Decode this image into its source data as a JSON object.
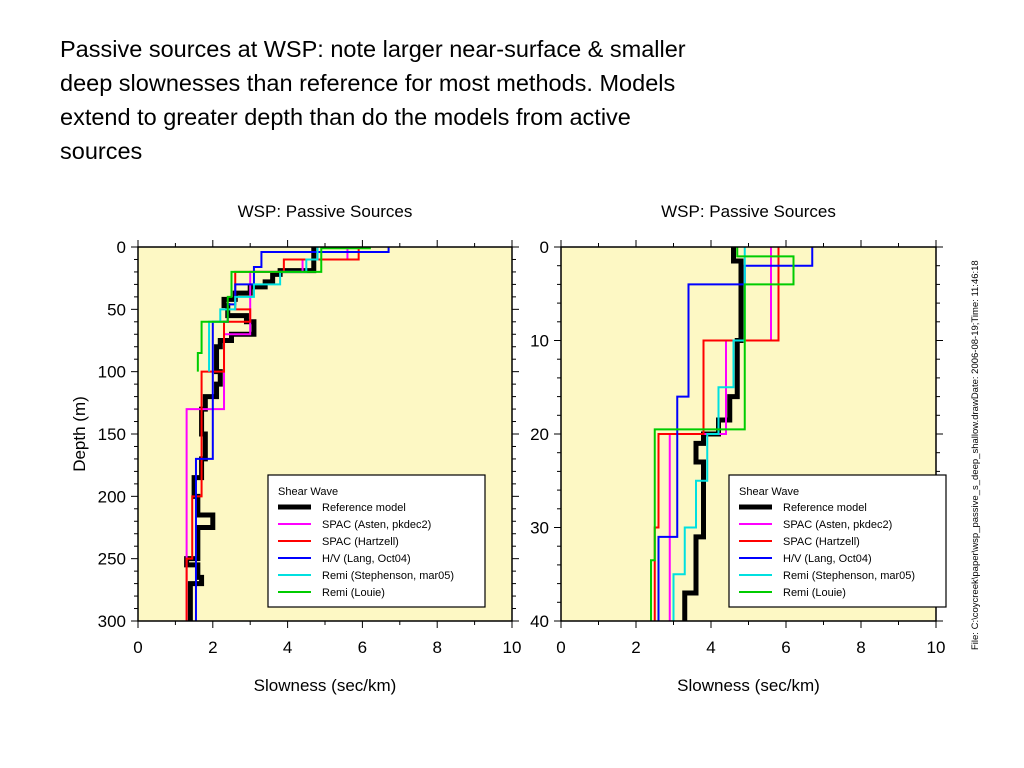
{
  "slide_title": [
    "Passive sources at WSP:  note larger near-surface & smaller",
    "deep slownesses than reference for most methods.  Models",
    "extend to greater depth than do the models from active",
    "sources"
  ],
  "file_info": "File: C:\\coycreek\\paper\\wsp_passive_s_deep_shallow.drawDate: 2006-08-19;Time: 11:46:18",
  "colors": {
    "plot_bg": "#fdf8c4",
    "reference": "#000000",
    "spac_asten": "#ff00ff",
    "spac_hartzell": "#ff0000",
    "hv_lang": "#0000ff",
    "remi_stephenson": "#00e0e0",
    "remi_louie": "#00cc00"
  },
  "chart_data": [
    {
      "type": "line",
      "title": "WSP: Passive Sources",
      "xlabel": "Slowness  (sec/km)",
      "ylabel": "Depth (m)",
      "xlim": [
        0,
        10
      ],
      "ylim": [
        0,
        300
      ],
      "y_inverted": true,
      "xticks": [
        "0",
        "2",
        "4",
        "6",
        "8",
        "10"
      ],
      "yticks": [
        "0",
        "50",
        "100",
        "150",
        "200",
        "250",
        "300"
      ],
      "legend": {
        "title": "Shear  Wave",
        "position": "bottom-right"
      },
      "series": [
        {
          "name": "Reference  model",
          "color": "#000000",
          "width": 5,
          "layers": [
            [
              0,
              19,
              4.7
            ],
            [
              19,
              22,
              3.8
            ],
            [
              22,
              28,
              3.6
            ],
            [
              28,
              32,
              3.4
            ],
            [
              32,
              37,
              3.0
            ],
            [
              37,
              42,
              2.6
            ],
            [
              42,
              47,
              2.3
            ],
            [
              47,
              55,
              2.4
            ],
            [
              55,
              60,
              2.9
            ],
            [
              60,
              70,
              3.1
            ],
            [
              70,
              75,
              2.5
            ],
            [
              75,
              80,
              2.2
            ],
            [
              80,
              100,
              2.1
            ],
            [
              100,
              110,
              2.2
            ],
            [
              110,
              120,
              2.1
            ],
            [
              120,
              130,
              1.8
            ],
            [
              130,
              150,
              1.7
            ],
            [
              150,
              170,
              1.8
            ],
            [
              170,
              185,
              1.7
            ],
            [
              185,
              200,
              1.5
            ],
            [
              200,
              215,
              1.6
            ],
            [
              215,
              225,
              2.0
            ],
            [
              225,
              250,
              1.6
            ],
            [
              250,
              255,
              1.3
            ],
            [
              255,
              265,
              1.6
            ],
            [
              265,
              270,
              1.7
            ],
            [
              270,
              300,
              1.4
            ]
          ]
        },
        {
          "name": "SPAC  (Asten,  pkdec2)",
          "color": "#ff00ff",
          "width": 2,
          "layers": [
            [
              0,
              10,
              5.6
            ],
            [
              10,
              20,
              4.4
            ],
            [
              20,
              70,
              3.0
            ],
            [
              70,
              130,
              2.3
            ],
            [
              130,
              300,
              1.3
            ]
          ]
        },
        {
          "name": "SPAC  (Hartzell)",
          "color": "#ff0000",
          "width": 2,
          "layers": [
            [
              0,
              10,
              5.9
            ],
            [
              10,
              20,
              3.9
            ],
            [
              20,
              50,
              2.6
            ],
            [
              50,
              60,
              3.0
            ],
            [
              60,
              100,
              2.3
            ],
            [
              100,
              200,
              1.7
            ],
            [
              200,
              250,
              1.45
            ],
            [
              250,
              300,
              1.3
            ]
          ]
        },
        {
          "name": "H/V  (Lang,  Oct04)",
          "color": "#0000ff",
          "width": 2,
          "layers": [
            [
              0,
              4,
              6.7
            ],
            [
              4,
              16,
              3.3
            ],
            [
              16,
              30,
              3.1
            ],
            [
              30,
              46,
              2.6
            ],
            [
              46,
              60,
              2.4
            ],
            [
              60,
              170,
              2.0
            ],
            [
              170,
              300,
              1.55
            ]
          ]
        },
        {
          "name": "Remi  (Stephenson,   mar05)",
          "color": "#00e0e0",
          "width": 2,
          "layers": [
            [
              0,
              10,
              4.8
            ],
            [
              10,
              20,
              4.5
            ],
            [
              20,
              30,
              3.8
            ],
            [
              30,
              40,
              3.1
            ],
            [
              40,
              50,
              2.6
            ],
            [
              50,
              60,
              2.2
            ],
            [
              60,
              100,
              1.9
            ]
          ]
        },
        {
          "name": "Remi  (Louie)",
          "color": "#00cc00",
          "width": 2,
          "layers": [
            [
              0,
              1,
              6.2
            ],
            [
              1,
              20,
              4.9
            ],
            [
              20,
              40,
              2.5
            ],
            [
              40,
              60,
              2.4
            ],
            [
              60,
              85,
              1.7
            ],
            [
              85,
              100,
              1.6
            ]
          ]
        }
      ]
    },
    {
      "type": "line",
      "title": "WSP: Passive Sources",
      "xlabel": "Slowness  (sec/km)",
      "ylabel": "",
      "xlim": [
        0,
        10
      ],
      "ylim": [
        0,
        40
      ],
      "y_inverted": true,
      "xticks": [
        "0",
        "2",
        "4",
        "6",
        "8",
        "10"
      ],
      "yticks": [
        "0",
        "10",
        "20",
        "30",
        "40"
      ],
      "legend": {
        "title": "Shear  Wave",
        "position": "bottom-right"
      },
      "series": [
        {
          "name": "Reference  model",
          "color": "#000000",
          "width": 5,
          "layers": [
            [
              0,
              1.5,
              4.6
            ],
            [
              1.5,
              10,
              4.8
            ],
            [
              10,
              16,
              4.7
            ],
            [
              16,
              18.5,
              4.5
            ],
            [
              18.5,
              20,
              4.2
            ],
            [
              20,
              21,
              3.8
            ],
            [
              21,
              23,
              3.6
            ],
            [
              23,
              31,
              3.8
            ],
            [
              31,
              37,
              3.6
            ],
            [
              37,
              40,
              3.3
            ]
          ]
        },
        {
          "name": "SPAC  (Asten,  pkdec2)",
          "color": "#ff00ff",
          "width": 2,
          "layers": [
            [
              0,
              10,
              5.6
            ],
            [
              10,
              20,
              4.4
            ],
            [
              20,
              40,
              2.9
            ]
          ]
        },
        {
          "name": "SPAC  (Hartzell)",
          "color": "#ff0000",
          "width": 2,
          "layers": [
            [
              0,
              10,
              5.8
            ],
            [
              10,
              20,
              3.8
            ],
            [
              20,
              30,
              2.6
            ],
            [
              30,
              40,
              2.5
            ]
          ]
        },
        {
          "name": "H/V  (Lang,  Oct04)",
          "color": "#0000ff",
          "width": 2,
          "layers": [
            [
              0,
              2,
              6.7
            ],
            [
              2,
              4,
              4.9
            ],
            [
              4,
              16,
              3.4
            ],
            [
              16,
              31,
              3.1
            ],
            [
              31,
              40,
              2.6
            ]
          ]
        },
        {
          "name": "Remi  (Stephenson,   mar05)",
          "color": "#00e0e0",
          "width": 2,
          "layers": [
            [
              0,
              10,
              4.9
            ],
            [
              10,
              15,
              4.6
            ],
            [
              15,
              20,
              4.2
            ],
            [
              20,
              25,
              3.9
            ],
            [
              25,
              30,
              3.6
            ],
            [
              30,
              35,
              3.3
            ],
            [
              35,
              40,
              3.0
            ]
          ]
        },
        {
          "name": "Remi  (Louie)",
          "color": "#00cc00",
          "width": 2,
          "layers": [
            [
              0,
              1,
              4.7
            ],
            [
              1,
              4,
              6.2
            ],
            [
              4,
              19.5,
              4.9
            ],
            [
              19.5,
              33.5,
              2.5
            ],
            [
              33.5,
              40,
              2.4
            ]
          ]
        }
      ]
    }
  ]
}
